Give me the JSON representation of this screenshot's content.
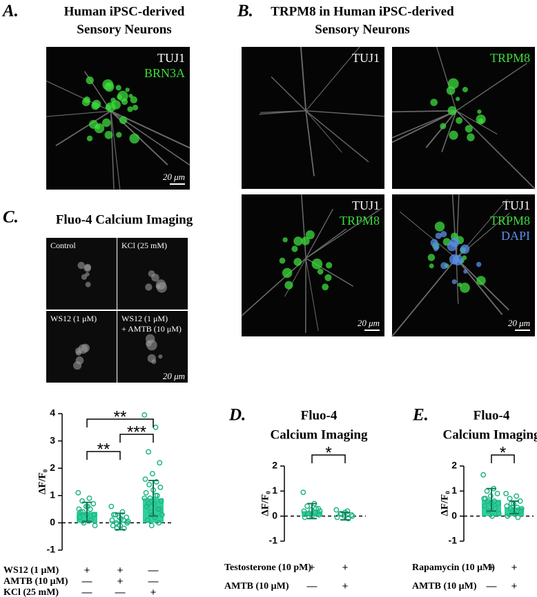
{
  "panels": {
    "a": {
      "label": "A.",
      "title": [
        "Human iPSC-derived",
        "Sensory Neurons"
      ],
      "channels": [
        {
          "name": "TUJ1",
          "color": "#ffffff"
        },
        {
          "name": "BRN3A",
          "color": "#3ddc3d"
        }
      ],
      "scale": "20 μm"
    },
    "b": {
      "label": "B.",
      "title": [
        "TRPM8 in Human iPSC-derived",
        "Sensory Neurons"
      ],
      "images": [
        {
          "channels": [
            {
              "name": "TUJ1",
              "color": "#ffffff"
            }
          ]
        },
        {
          "channels": [
            {
              "name": "TRPM8",
              "color": "#3ddc3d"
            }
          ]
        },
        {
          "channels": [
            {
              "name": "TUJ1",
              "color": "#ffffff"
            },
            {
              "name": "TRPM8",
              "color": "#3ddc3d"
            }
          ],
          "scale": "20 μm"
        },
        {
          "channels": [
            {
              "name": "TUJ1",
              "color": "#ffffff"
            },
            {
              "name": "TRPM8",
              "color": "#3ddc3d"
            },
            {
              "name": "DAPI",
              "color": "#5a8fe8"
            }
          ],
          "scale": "20 μm"
        }
      ]
    },
    "c": {
      "label": "C.",
      "title": [
        "Fluo-4 Calcium Imaging"
      ],
      "images": [
        [
          "Control"
        ],
        [
          "KCl (25 mM)"
        ],
        [
          "WS12 (1 μM)"
        ],
        [
          "WS12 (1 μM)",
          "+ AMTB (10 μM)"
        ]
      ],
      "scale": "20 μm"
    },
    "d": {
      "label": "D.",
      "title": [
        "Fluo-4",
        "Calcium Imaging"
      ]
    },
    "e": {
      "label": "E.",
      "title": [
        "Fluo-4",
        "Calcium Imaging"
      ]
    }
  },
  "chart_data": [
    {
      "type": "bar",
      "ylabel": "ΔF/F₀",
      "ylim": [
        -1,
        4
      ],
      "yticks": [
        -1,
        0,
        1,
        2,
        3,
        4
      ],
      "color": "#2ecf9a",
      "point_color": "#1fb585",
      "categories": [
        null,
        null,
        null
      ],
      "values": [
        0.4,
        0.05,
        0.9
      ],
      "errors": [
        0.35,
        0.3,
        0.65
      ],
      "points": [
        [
          1.1,
          0.9,
          0.8,
          0.7,
          0.6,
          0.5,
          0.5,
          0.4,
          0.3,
          0.3,
          0.2,
          0.1,
          0.0,
          -0.1,
          0.6,
          0.4
        ],
        [
          0.6,
          0.4,
          0.3,
          0.2,
          0.2,
          0.1,
          0.1,
          0.0,
          0.0,
          -0.1,
          -0.1,
          -0.2,
          -0.2,
          0.05,
          0.15,
          0.3
        ],
        [
          3.95,
          3.5,
          2.6,
          2.2,
          1.8,
          1.6,
          1.5,
          1.4,
          1.3,
          1.2,
          1.1,
          1.0,
          0.9,
          0.8,
          0.7,
          0.6,
          0.5,
          0.4,
          0.3,
          0.2,
          0.1,
          0.0,
          -0.1,
          0.9,
          1.0,
          0.7,
          0.5,
          0.3
        ]
      ],
      "significance": [
        {
          "groups": [
            0,
            1
          ],
          "label": "**"
        },
        {
          "groups": [
            1,
            2
          ],
          "label": "***"
        },
        {
          "groups": [
            0,
            2
          ],
          "label": "**"
        }
      ],
      "conditions": [
        {
          "label": "WS12 (1 μM)",
          "marks": [
            "+",
            "+",
            "—"
          ]
        },
        {
          "label": "AMTB (10 μM)",
          "marks": [
            "—",
            "+",
            "—"
          ]
        },
        {
          "label": "KCl (25 mM)",
          "marks": [
            "—",
            "—",
            "+"
          ]
        }
      ]
    },
    {
      "type": "bar",
      "ylabel": "ΔF/F₀",
      "ylim": [
        -1,
        2
      ],
      "yticks": [
        -1,
        0,
        1,
        2
      ],
      "color": "#2ecf9a",
      "point_color": "#1fb585",
      "categories": [
        null,
        null
      ],
      "values": [
        0.2,
        0.0
      ],
      "errors": [
        0.3,
        0.15
      ],
      "points": [
        [
          0.95,
          0.5,
          0.4,
          0.3,
          0.25,
          0.2,
          0.15,
          0.1,
          0.05,
          0.0,
          -0.05,
          0.3,
          0.1,
          0.2
        ],
        [
          0.25,
          0.2,
          0.1,
          0.05,
          0.0,
          -0.05,
          -0.1,
          0.1,
          0.0,
          0.15
        ]
      ],
      "significance": [
        {
          "groups": [
            0,
            1
          ],
          "label": "*"
        }
      ],
      "conditions": [
        {
          "label": "Testosterone (10 pM)",
          "marks": [
            "+",
            "+"
          ]
        },
        {
          "label": "AMTB (10 μM)",
          "marks": [
            "—",
            "+"
          ]
        }
      ]
    },
    {
      "type": "bar",
      "ylabel": "ΔF/F₀",
      "ylim": [
        -1,
        2
      ],
      "yticks": [
        -1,
        0,
        1,
        2
      ],
      "color": "#2ecf9a",
      "point_color": "#1fb585",
      "categories": [
        null,
        null
      ],
      "values": [
        0.65,
        0.35
      ],
      "errors": [
        0.45,
        0.25
      ],
      "points": [
        [
          1.65,
          1.1,
          1.0,
          0.9,
          0.8,
          0.7,
          0.6,
          0.6,
          0.5,
          0.5,
          0.4,
          0.3,
          0.2,
          0.1,
          0.0,
          0.7
        ],
        [
          0.9,
          0.8,
          0.7,
          0.6,
          0.5,
          0.4,
          0.35,
          0.3,
          0.2,
          0.1,
          0.0,
          -0.05,
          0.5,
          0.3
        ]
      ],
      "significance": [
        {
          "groups": [
            0,
            1
          ],
          "label": "*"
        }
      ],
      "conditions": [
        {
          "label": "Rapamycin (10 μM)",
          "marks": [
            "+",
            "+"
          ]
        },
        {
          "label": "AMTB (10 μM)",
          "marks": [
            "—",
            "+"
          ]
        }
      ]
    }
  ]
}
